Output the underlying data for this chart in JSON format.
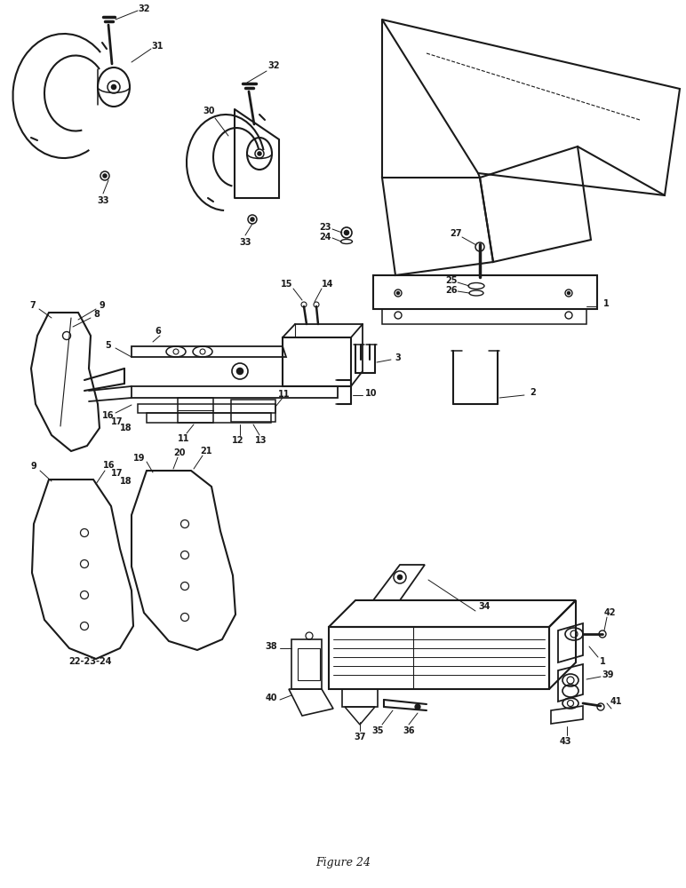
{
  "bg_color": "#ffffff",
  "line_color": "#1a1a1a",
  "caption": "Figure 24",
  "fig_width": 7.72,
  "fig_height": 10.0,
  "dpi": 100
}
